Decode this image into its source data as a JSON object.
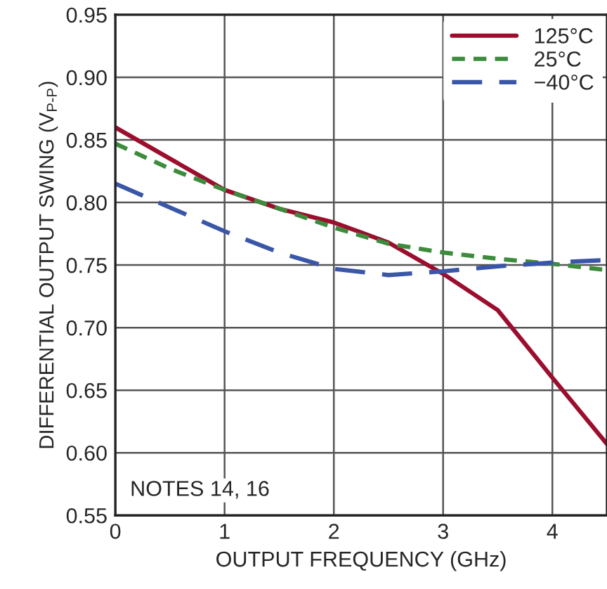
{
  "chart_data": {
    "type": "line",
    "xlabel": "OUTPUT FREQUENCY (GHz)",
    "ylabel": "DIFFERENTIAL OUTPUT SWING (V$_{P-P}$)",
    "x": [
      0,
      0.5,
      1,
      1.5,
      2,
      2.5,
      3,
      3.5,
      4,
      4.5
    ],
    "series": [
      {
        "name": "125°C",
        "color": "#9b0e2e",
        "line_style": "solid",
        "values": [
          0.86,
          0.835,
          0.81,
          0.795,
          0.784,
          0.768,
          0.743,
          0.714,
          0.66,
          0.607
        ]
      },
      {
        "name": "25°C",
        "color": "#3d8c3d",
        "line_style": "dashed",
        "values": [
          0.847,
          0.827,
          0.81,
          0.795,
          0.78,
          0.767,
          0.76,
          0.755,
          0.751,
          0.746
        ]
      },
      {
        "name": "−40°C",
        "color": "#3a56a8",
        "line_style": "longdash",
        "values": [
          0.815,
          0.796,
          0.777,
          0.76,
          0.747,
          0.742,
          0.745,
          0.749,
          0.752,
          0.754
        ]
      }
    ],
    "xlim": [
      0,
      4.5
    ],
    "xticks": [
      0,
      1,
      2,
      3,
      4
    ],
    "ylim": [
      0.55,
      0.95
    ],
    "yticks": [
      {
        "value": 0.55,
        "label": "0.55"
      },
      {
        "value": 0.6,
        "label": "0.60"
      },
      {
        "value": 0.65,
        "label": "0.65"
      },
      {
        "value": 0.7,
        "label": "0.70"
      },
      {
        "value": 0.75,
        "label": "0.75"
      },
      {
        "value": 0.8,
        "label": "0.80"
      },
      {
        "value": 0.85,
        "label": "0.85"
      },
      {
        "value": 0.9,
        "label": "0.90"
      },
      {
        "value": 0.95,
        "label": "0.95"
      }
    ],
    "grid": true,
    "legend": "top right",
    "marker": "none",
    "annotations": [
      "NOTES 14, 16"
    ]
  }
}
